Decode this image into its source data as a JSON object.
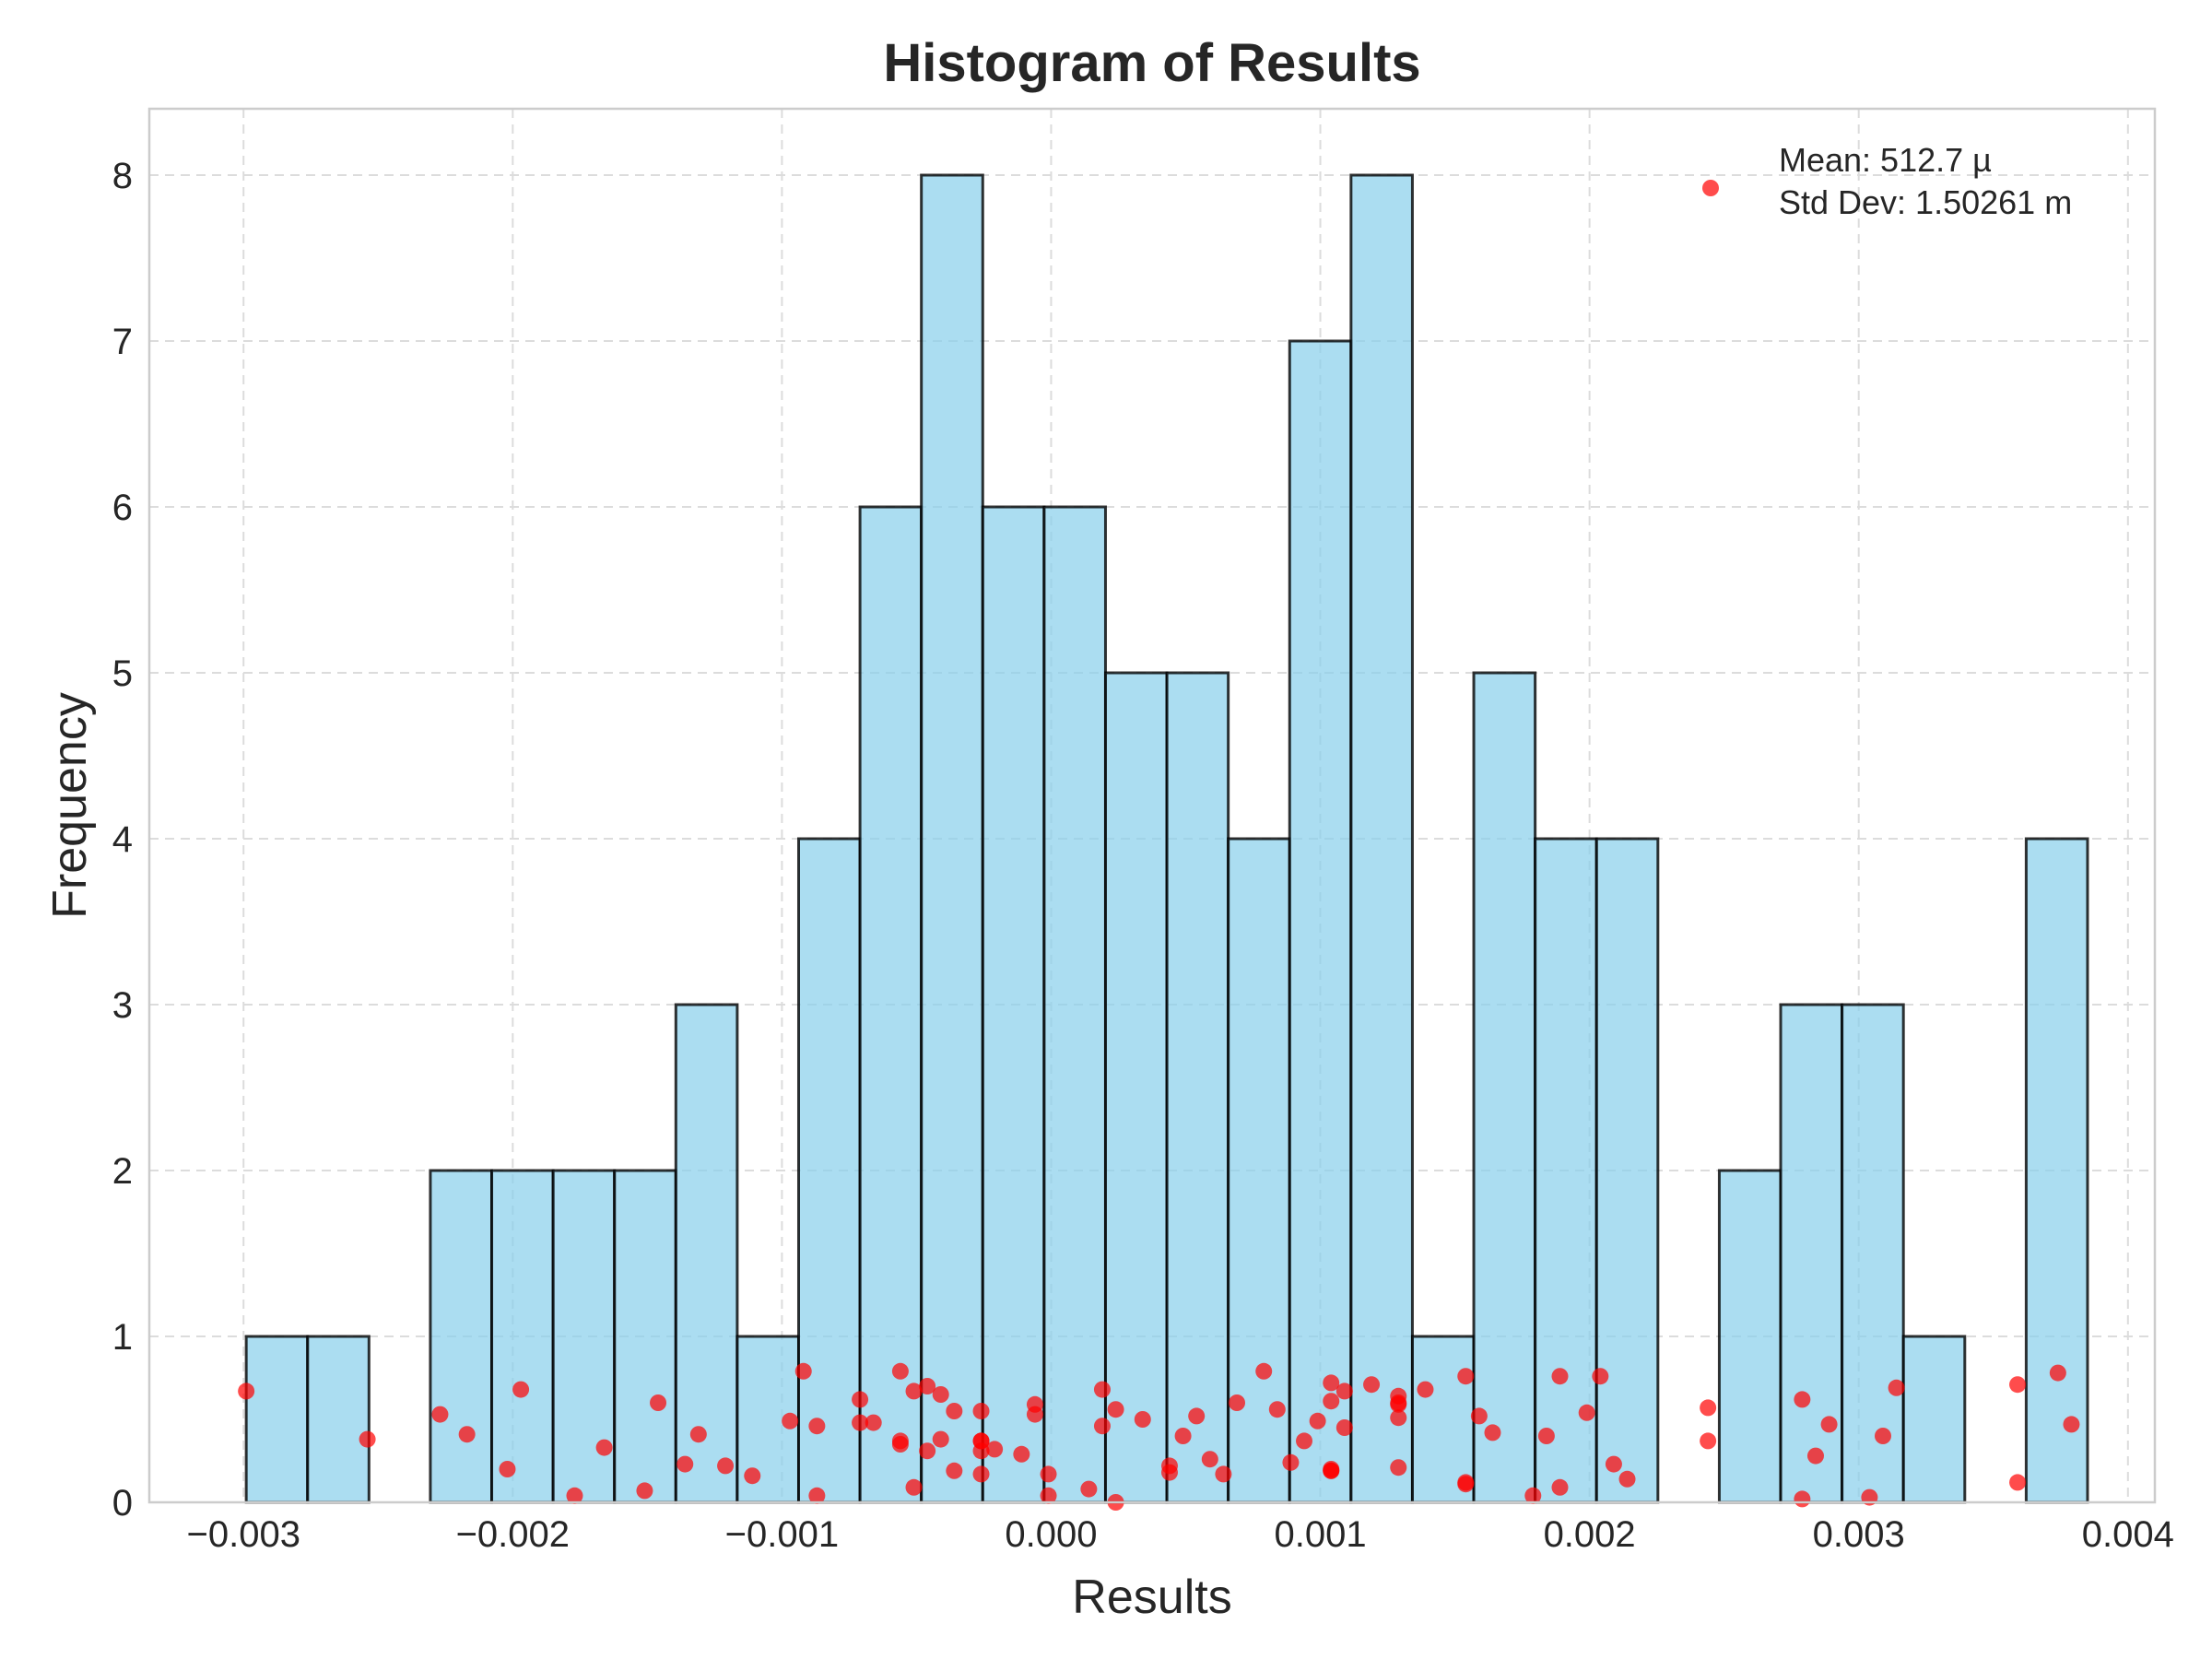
{
  "chart_data": {
    "type": "bar",
    "title": "Histogram of Results",
    "xlabel": "Results",
    "ylabel": "Frequency",
    "xlim": [
      -0.00335,
      0.0041
    ],
    "ylim": [
      0,
      8.4
    ],
    "grid": true,
    "xticks": [
      -0.003,
      -0.002,
      -0.001,
      0.0,
      0.001,
      0.002,
      0.003,
      0.004
    ],
    "xtick_labels": [
      "−0.003",
      "−0.002",
      "−0.001",
      "0.000",
      "0.001",
      "0.002",
      "0.003",
      "0.004"
    ],
    "yticks": [
      0,
      1,
      2,
      3,
      4,
      5,
      6,
      7,
      8
    ],
    "bins": {
      "start": -0.00299,
      "width": 0.000228,
      "counts": [
        1,
        1,
        0,
        2,
        2,
        2,
        2,
        3,
        1,
        4,
        6,
        8,
        6,
        6,
        5,
        5,
        4,
        7,
        8,
        1,
        5,
        4,
        4,
        0,
        2,
        3,
        3,
        1,
        0,
        4
      ]
    },
    "bar_color": "#87ceeb",
    "edge_color": "#000000",
    "series": [
      {
        "type": "scatter",
        "color": "#ff0000",
        "x": [
          -0.00299,
          -0.00254,
          -0.00227,
          -0.00217,
          -0.00202,
          -0.00197,
          -0.00177,
          -0.00166,
          -0.00151,
          -0.00146,
          -0.00136,
          -0.00131,
          -0.00121,
          -0.00111,
          -0.00097,
          -0.00092,
          -0.00087,
          -0.00087,
          -0.00071,
          -0.00071,
          -0.00066,
          -0.00056,
          -0.00056,
          -0.00056,
          -0.00051,
          -0.00051,
          -0.00046,
          -0.00046,
          -0.00041,
          -0.00041,
          -0.00036,
          -0.00036,
          -0.00026,
          -0.00026,
          -0.00026,
          -0.00026,
          -0.00026,
          -0.00021,
          -0.00011,
          -6e-05,
          -6e-05,
          -1e-05,
          -1e-05,
          0.00014,
          0.00019,
          0.00019,
          0.00024,
          0.00024,
          0.00034,
          0.00044,
          0.00044,
          0.00049,
          0.00054,
          0.00059,
          0.00064,
          0.00069,
          0.00079,
          0.00084,
          0.00089,
          0.00094,
          0.00099,
          0.00104,
          0.00104,
          0.00104,
          0.00104,
          0.00104,
          0.00109,
          0.00109,
          0.00119,
          0.00129,
          0.00129,
          0.00129,
          0.00129,
          0.00129,
          0.00139,
          0.00154,
          0.00154,
          0.00154,
          0.00159,
          0.00164,
          0.00179,
          0.00184,
          0.00189,
          0.00189,
          0.00199,
          0.00204,
          0.00209,
          0.00214,
          0.00244,
          0.00244,
          0.00279,
          0.00279,
          0.00284,
          0.00289,
          0.00304,
          0.00309,
          0.00314,
          0.00359,
          0.00359,
          0.00374,
          0.00379
        ],
        "y": [
          0.67,
          0.38,
          0.53,
          0.41,
          0.2,
          0.68,
          0.04,
          0.33,
          0.07,
          0.6,
          0.23,
          0.41,
          0.22,
          0.16,
          0.49,
          0.79,
          0.46,
          0.04,
          0.62,
          0.48,
          0.48,
          0.79,
          0.37,
          0.35,
          0.67,
          0.09,
          0.7,
          0.31,
          0.65,
          0.38,
          0.55,
          0.19,
          0.55,
          0.37,
          0.31,
          0.17,
          0.37,
          0.32,
          0.29,
          0.59,
          0.53,
          0.17,
          0.04,
          0.08,
          0.68,
          0.46,
          0.56,
          0.0,
          0.5,
          0.22,
          0.18,
          0.4,
          0.52,
          0.26,
          0.17,
          0.6,
          0.79,
          0.56,
          0.24,
          0.37,
          0.49,
          0.72,
          0.61,
          0.19,
          0.2,
          0.19,
          0.67,
          0.45,
          0.71,
          0.64,
          0.6,
          0.51,
          0.21,
          0.59,
          0.68,
          0.76,
          0.11,
          0.12,
          0.52,
          0.42,
          0.04,
          0.4,
          0.76,
          0.09,
          0.54,
          0.76,
          0.23,
          0.14,
          0.57,
          0.37,
          0.62,
          0.02,
          0.28,
          0.47,
          0.03,
          0.4,
          0.69,
          0.71,
          0.12,
          0.78,
          0.47
        ]
      }
    ],
    "legend": {
      "placement": "top-right",
      "entries": [
        "Mean: 512.7 µ",
        "Std Dev: 1.50261 m"
      ],
      "marker_color": "#ff0000"
    }
  }
}
